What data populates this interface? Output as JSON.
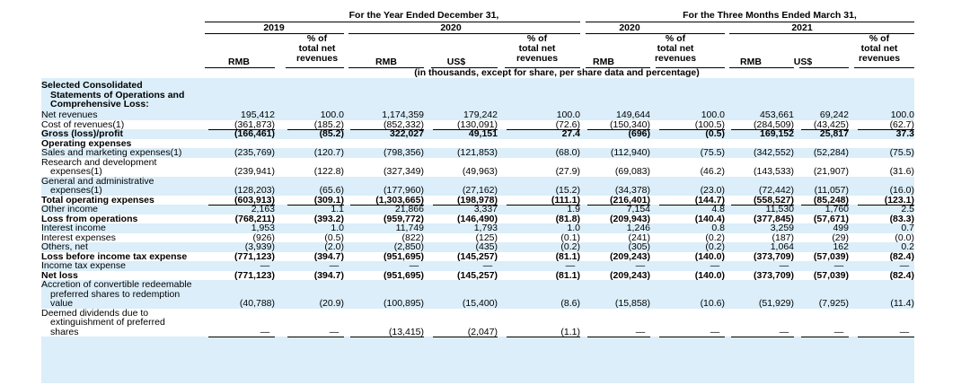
{
  "header": {
    "year_ended": "For the Year Ended December 31,",
    "three_months": "For the Three Months Ended March 31,",
    "year_2019": "2019",
    "year_2020": "2020",
    "q_2020": "2020",
    "q_2021": "2021",
    "pct_label": [
      "% of",
      "total net",
      "revenues"
    ],
    "rmb": "RMB",
    "usd": "US$",
    "units_note": "(in thousands, except for share, per share data and percentage)"
  },
  "section_title": [
    "Selected Consolidated",
    "Statements of Operations and",
    "Comprehensive Loss:"
  ],
  "rows": [
    {
      "label": [
        "Net revenues"
      ],
      "bold": false,
      "values": [
        "195,412",
        "100.0",
        "1,174,359",
        "179,242",
        "100.0",
        "149,644",
        "100.0",
        "453,661",
        "69,242",
        "100.0"
      ]
    },
    {
      "label": [
        "Cost of revenues(1)"
      ],
      "bold": false,
      "underline": true,
      "values": [
        "(361,873)",
        "(185.2)",
        "(852,332)",
        "(130,091)",
        "(72.6)",
        "(150,340)",
        "(100.5)",
        "(284,509)",
        "(43,425)",
        "(62.7)"
      ]
    },
    {
      "label": [
        "Gross (loss)/profit"
      ],
      "bold": true,
      "underline": true,
      "values": [
        "(166,461)",
        "(85.2)",
        "322,027",
        "49,151",
        "27.4",
        "(696)",
        "(0.5)",
        "169,152",
        "25,817",
        "37.3"
      ]
    },
    {
      "label": [
        "Operating expenses"
      ],
      "bold": true,
      "values": [
        "",
        "",
        "",
        "",
        "",
        "",
        "",
        "",
        "",
        ""
      ]
    },
    {
      "label": [
        "Sales and marketing expenses(1)"
      ],
      "bold": false,
      "values": [
        "(235,769)",
        "(120.7)",
        "(798,356)",
        "(121,853)",
        "(68.0)",
        "(112,940)",
        "(75.5)",
        "(342,552)",
        "(52,284)",
        "(75.5)"
      ]
    },
    {
      "label": [
        "Research and development",
        "  expenses(1)"
      ],
      "bold": false,
      "values": [
        "(239,941)",
        "(122.8)",
        "(327,349)",
        "(49,963)",
        "(27.9)",
        "(69,083)",
        "(46.2)",
        "(143,533)",
        "(21,907)",
        "(31.6)"
      ]
    },
    {
      "label": [
        "General and administrative",
        "  expenses(1)"
      ],
      "bold": false,
      "underline": true,
      "values": [
        "(128,203)",
        "(65.6)",
        "(177,960)",
        "(27,162)",
        "(15.2)",
        "(34,378)",
        "(23.0)",
        "(72,442)",
        "(11,057)",
        "(16.0)"
      ]
    },
    {
      "label": [
        "Total operating expenses"
      ],
      "bold": true,
      "underline": true,
      "values": [
        "(603,913)",
        "(309.1)",
        "(1,303,665)",
        "(198,978)",
        "(111.1)",
        "(216,401)",
        "(144.7)",
        "(558,527)",
        "(85,248)",
        "(123.1)"
      ]
    },
    {
      "label": [
        "Other income"
      ],
      "bold": false,
      "underline": true,
      "values": [
        "2,163",
        "1.1",
        "21,866",
        "3,337",
        "1.9",
        "7,154",
        "4.8",
        "11,530",
        "1,760",
        "2.5"
      ]
    },
    {
      "label": [
        "Loss from operations"
      ],
      "bold": true,
      "values": [
        "(768,211)",
        "(393.2)",
        "(959,772)",
        "(146,490)",
        "(81.8)",
        "(209,943)",
        "(140.4)",
        "(377,845)",
        "(57,671)",
        "(83.3)"
      ]
    },
    {
      "label": [
        "Interest income"
      ],
      "bold": false,
      "values": [
        "1,953",
        "1.0",
        "11,749",
        "1,793",
        "1.0",
        "1,246",
        "0.8",
        "3,259",
        "499",
        "0.7"
      ]
    },
    {
      "label": [
        "Interest expenses"
      ],
      "bold": false,
      "values": [
        "(926)",
        "(0.5)",
        "(822)",
        "(125)",
        "(0.1)",
        "(241)",
        "(0.2)",
        "(187)",
        "(29)",
        "(0.0)"
      ]
    },
    {
      "label": [
        "Others, net"
      ],
      "bold": false,
      "underline": true,
      "values": [
        "(3,939)",
        "(2.0)",
        "(2,850)",
        "(435)",
        "(0.2)",
        "(305)",
        "(0.2)",
        "1,064",
        "162",
        "0.2"
      ]
    },
    {
      "label": [
        "Loss before income tax expense"
      ],
      "bold": true,
      "values": [
        "(771,123)",
        "(394.7)",
        "(951,695)",
        "(145,257)",
        "(81.1)",
        "(209,243)",
        "(140.0)",
        "(373,709)",
        "(57,039)",
        "(82.4)"
      ]
    },
    {
      "label": [
        "Income tax expense"
      ],
      "bold": false,
      "underline": true,
      "values": [
        "—",
        "—",
        "—",
        "—",
        "—",
        "—",
        "—",
        "—",
        "—",
        "—"
      ]
    },
    {
      "label": [
        "Net loss"
      ],
      "bold": true,
      "values": [
        "(771,123)",
        "(394.7)",
        "(951,695)",
        "(145,257)",
        "(81.1)",
        "(209,243)",
        "(140.0)",
        "(373,709)",
        "(57,039)",
        "(82.4)"
      ]
    },
    {
      "label": [
        "Accretion of convertible redeemable",
        "  preferred shares to redemption",
        "  value"
      ],
      "bold": false,
      "values": [
        "(40,788)",
        "(20.9)",
        "(100,895)",
        "(15,400)",
        "(8.6)",
        "(15,858)",
        "(10.6)",
        "(51,929)",
        "(7,925)",
        "(11.4)"
      ]
    },
    {
      "label": [
        "Deemed dividends due to",
        "  extinguishment of preferred",
        "  shares"
      ],
      "bold": false,
      "underline": true,
      "values": [
        "—",
        "—",
        "(13,415)",
        "(2,047)",
        "(1.1)",
        "—",
        "—",
        "—",
        "—",
        "—"
      ]
    }
  ]
}
